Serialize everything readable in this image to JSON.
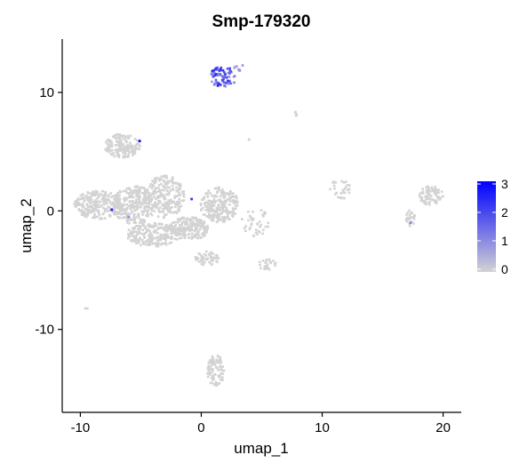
{
  "chart_data": {
    "type": "scatter",
    "title": "Smp-179320",
    "xlabel": "umap_1",
    "ylabel": "umap_2",
    "xlim": [
      -11.5,
      21.5
    ],
    "ylim": [
      -17,
      14.5
    ],
    "x_ticks": [
      -10,
      0,
      10,
      20
    ],
    "y_ticks": [
      -10,
      0,
      10
    ],
    "grid": false,
    "legend": {
      "placement": "right",
      "type": "colorbar",
      "min": 0,
      "max": 3,
      "ticks": [
        0,
        1,
        2,
        3
      ],
      "low_color": "#d3d3d3",
      "high_color": "#0000ff"
    },
    "clusters": [
      {
        "cx": 1.8,
        "cy": 11.3,
        "rx": 1.1,
        "ry": 0.9,
        "n": 70,
        "expr": 1.6
      },
      {
        "cx": 3.2,
        "cy": 12.1,
        "rx": 0.5,
        "ry": 0.3,
        "n": 8,
        "expr": 0.6
      },
      {
        "cx": -6.5,
        "cy": 5.5,
        "rx": 1.6,
        "ry": 1.0,
        "n": 160,
        "expr": 0
      },
      {
        "cx": -8.5,
        "cy": 0.5,
        "rx": 2.0,
        "ry": 1.2,
        "n": 220,
        "expr": 0
      },
      {
        "cx": -5.5,
        "cy": 0.5,
        "rx": 1.8,
        "ry": 1.6,
        "n": 260,
        "expr": 0
      },
      {
        "cx": -3.0,
        "cy": 1.2,
        "rx": 1.6,
        "ry": 1.8,
        "n": 230,
        "expr": 0
      },
      {
        "cx": -4.0,
        "cy": -2.0,
        "rx": 2.2,
        "ry": 1.0,
        "n": 220,
        "expr": 0
      },
      {
        "cx": -1.0,
        "cy": -1.5,
        "rx": 1.6,
        "ry": 1.0,
        "n": 200,
        "expr": 0
      },
      {
        "cx": 1.5,
        "cy": 0.5,
        "rx": 1.6,
        "ry": 1.5,
        "n": 230,
        "expr": 0
      },
      {
        "cx": 0.5,
        "cy": -4.0,
        "rx": 1.0,
        "ry": 0.6,
        "n": 50,
        "expr": 0
      },
      {
        "cx": 5.5,
        "cy": -4.5,
        "rx": 0.8,
        "ry": 0.5,
        "n": 25,
        "expr": 0
      },
      {
        "cx": 4.5,
        "cy": -1.0,
        "rx": 1.2,
        "ry": 1.2,
        "n": 40,
        "expr": 0
      },
      {
        "cx": 1.2,
        "cy": -13.5,
        "rx": 0.7,
        "ry": 1.4,
        "n": 90,
        "expr": 0
      },
      {
        "cx": 19.0,
        "cy": 1.3,
        "rx": 1.0,
        "ry": 0.8,
        "n": 80,
        "expr": 0
      },
      {
        "cx": 17.3,
        "cy": -0.6,
        "rx": 0.4,
        "ry": 0.7,
        "n": 25,
        "expr": 0
      },
      {
        "cx": 11.5,
        "cy": 1.8,
        "rx": 1.0,
        "ry": 0.8,
        "n": 30,
        "expr": 0
      },
      {
        "cx": 7.8,
        "cy": 8.2,
        "rx": 0.2,
        "ry": 0.2,
        "n": 5,
        "expr": 0
      },
      {
        "cx": 3.9,
        "cy": 6.0,
        "rx": 0.1,
        "ry": 0.1,
        "n": 2,
        "expr": 0
      },
      {
        "cx": -9.5,
        "cy": -8.2,
        "rx": 0.1,
        "ry": 0.1,
        "n": 2,
        "expr": 0
      }
    ],
    "highlight_points": [
      {
        "x": -7.4,
        "y": 0.1,
        "value": 2.6
      },
      {
        "x": -5.1,
        "y": 5.9,
        "value": 3.0
      },
      {
        "x": -0.8,
        "y": 1.0,
        "value": 2.2
      },
      {
        "x": 17.3,
        "y": -1.0,
        "value": 1.2
      },
      {
        "x": -6.0,
        "y": -0.5,
        "value": 1.0
      }
    ]
  }
}
